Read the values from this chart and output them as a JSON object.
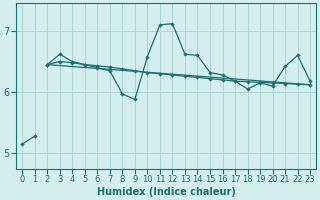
{
  "xlabel": "Humidex (Indice chaleur)",
  "bg_color": "#d4eeee",
  "grid_color": "#aed4d4",
  "line_color": "#1a7070",
  "xlim": [
    -0.5,
    23.5
  ],
  "ylim": [
    4.75,
    7.45
  ],
  "yticks": [
    5,
    6,
    7
  ],
  "xticks": [
    0,
    1,
    2,
    3,
    4,
    5,
    6,
    7,
    8,
    9,
    10,
    11,
    12,
    13,
    14,
    15,
    16,
    17,
    18,
    19,
    20,
    21,
    22,
    23
  ],
  "series": [
    {
      "x": [
        0,
        1
      ],
      "y": [
        5.15,
        5.28
      ]
    },
    {
      "x": [
        2,
        3,
        4,
        5,
        6,
        7,
        8,
        9,
        10,
        11,
        12,
        13,
        14,
        15,
        16,
        17,
        18,
        19,
        20,
        21,
        22,
        23
      ],
      "y": [
        6.45,
        6.62,
        6.5,
        6.45,
        6.4,
        6.35,
        5.97,
        5.88,
        6.58,
        7.1,
        7.12,
        6.62,
        6.6,
        6.32,
        6.28,
        6.18,
        6.05,
        6.15,
        6.1,
        6.42,
        6.6,
        6.18
      ]
    },
    {
      "x": [
        2,
        3,
        4,
        5,
        6,
        7,
        8,
        9,
        10,
        11,
        12,
        13,
        14,
        15,
        16,
        17,
        18,
        19,
        20,
        21,
        22,
        23
      ],
      "y": [
        6.45,
        6.5,
        6.48,
        6.45,
        6.43,
        6.41,
        6.38,
        6.35,
        6.32,
        6.3,
        6.28,
        6.26,
        6.24,
        6.22,
        6.2,
        6.18,
        6.17,
        6.16,
        6.15,
        6.14,
        6.13,
        6.12
      ]
    },
    {
      "x": [
        2,
        23
      ],
      "y": [
        6.45,
        6.12
      ]
    }
  ],
  "fontsize_xlabel": 7,
  "fontsize_ticks_x": 6,
  "fontsize_ticks_y": 7
}
